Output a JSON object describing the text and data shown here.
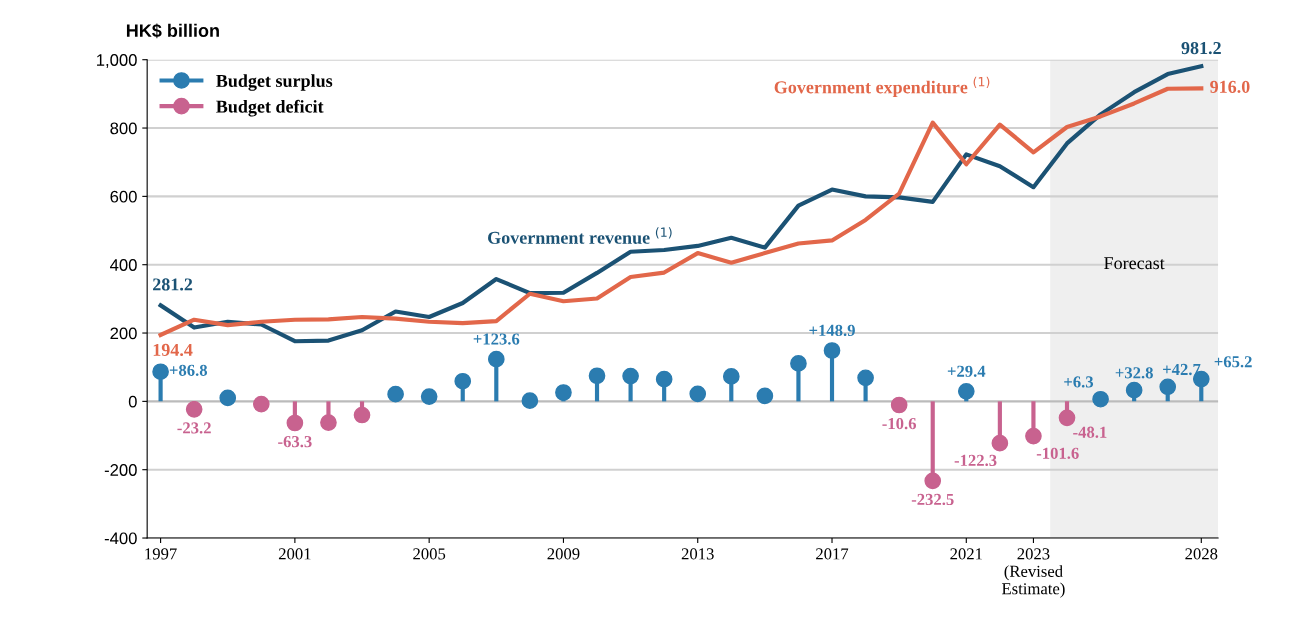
{
  "chart_data": {
    "type": "line",
    "ylabel": "HK$ billion",
    "x": [
      1997,
      1998,
      1999,
      2000,
      2001,
      2002,
      2003,
      2004,
      2005,
      2006,
      2007,
      2008,
      2009,
      2010,
      2011,
      2012,
      2013,
      2014,
      2015,
      2016,
      2017,
      2018,
      2019,
      2020,
      2021,
      2022,
      2023,
      2024,
      2025,
      2026,
      2027,
      2028
    ],
    "xlim": [
      1996.6,
      2028.5
    ],
    "xticks": [
      1997,
      2001,
      2005,
      2009,
      2013,
      2017,
      2021,
      {
        "value": 2023,
        "label": "2023\n(Revised\nEstimate)"
      },
      2028
    ],
    "ylim": [
      -400,
      1000
    ],
    "yticks": [
      -400,
      -200,
      0,
      200,
      400,
      600,
      800,
      {
        "value": 1000,
        "label": "1,000"
      }
    ],
    "grid": "y",
    "legend": "top left",
    "series": [
      {
        "name": "Government revenue $^{(1)}$",
        "color": "#1b5274",
        "values": [
          281.2,
          216,
          233,
          225,
          176,
          178,
          208,
          263,
          247,
          288,
          358,
          317,
          318,
          376,
          438,
          443,
          455,
          479,
          450,
          573,
          620,
          600,
          597,
          584,
          723,
          688,
          627,
          755,
          840,
          905,
          958,
          981.2
        ],
        "value_labels": [
          "281.2",
          null,
          null,
          null,
          null,
          null,
          null,
          null,
          null,
          null,
          null,
          null,
          null,
          null,
          null,
          null,
          null,
          null,
          null,
          null,
          null,
          null,
          null,
          null,
          null,
          null,
          null,
          null,
          null,
          null,
          null,
          "981.2"
        ]
      },
      {
        "name": "Government expenditure $^{(1)}$",
        "color": "#e2674a",
        "values": [
          194.4,
          239,
          223,
          233,
          239,
          240,
          247,
          242,
          233,
          229,
          235,
          315,
          293,
          301,
          364,
          377,
          434,
          406,
          434,
          462,
          471,
          531,
          608,
          816,
          694,
          810,
          729,
          803,
          834,
          872,
          915,
          916.0
        ],
        "value_labels": [
          "194.4",
          null,
          null,
          null,
          null,
          null,
          null,
          null,
          null,
          null,
          null,
          null,
          null,
          null,
          null,
          null,
          null,
          null,
          null,
          null,
          null,
          null,
          null,
          null,
          null,
          null,
          null,
          null,
          null,
          null,
          null,
          "916.0"
        ]
      },
      {
        "name": "Budget surplus",
        "type": "lollipop",
        "color": "#2b7cb0",
        "values": [
          86.8,
          null,
          10,
          null,
          null,
          null,
          null,
          21,
          14,
          59,
          123.6,
          2,
          26,
          75,
          74,
          65,
          22,
          73,
          16,
          111,
          148.9,
          69,
          null,
          null,
          29.4,
          null,
          null,
          null,
          6.3,
          32.8,
          42.7,
          65.2
        ],
        "value_labels": [
          "+86.8",
          null,
          null,
          null,
          null,
          null,
          null,
          null,
          null,
          null,
          "+123.6",
          null,
          null,
          null,
          null,
          null,
          null,
          null,
          null,
          null,
          "+148.9",
          null,
          null,
          null,
          "+29.4",
          null,
          null,
          null,
          "+6.3",
          "+32.8",
          "+42.7",
          "+65.2"
        ]
      },
      {
        "name": "Budget deficit",
        "type": "lollipop",
        "color": "#c8628f",
        "values": [
          null,
          -23.2,
          null,
          -8,
          -63.3,
          -62,
          -40,
          null,
          null,
          null,
          null,
          null,
          null,
          null,
          null,
          null,
          null,
          null,
          null,
          null,
          null,
          null,
          -10.6,
          -232.5,
          null,
          -122.3,
          -101.6,
          -48.1,
          null,
          null,
          null,
          null
        ],
        "value_labels": [
          null,
          "-23.2",
          null,
          null,
          "-63.3",
          null,
          null,
          null,
          null,
          null,
          null,
          null,
          null,
          null,
          null,
          null,
          null,
          null,
          null,
          null,
          null,
          null,
          "-10.6",
          "-232.5",
          null,
          "-122.3",
          "-101.6",
          "-48.1",
          null,
          null,
          null,
          null
        ]
      }
    ],
    "bands": [
      {
        "axis": "x",
        "from": 2023.5,
        "to": 2028.5,
        "label": "Forecast",
        "color": "#efefef"
      }
    ]
  }
}
